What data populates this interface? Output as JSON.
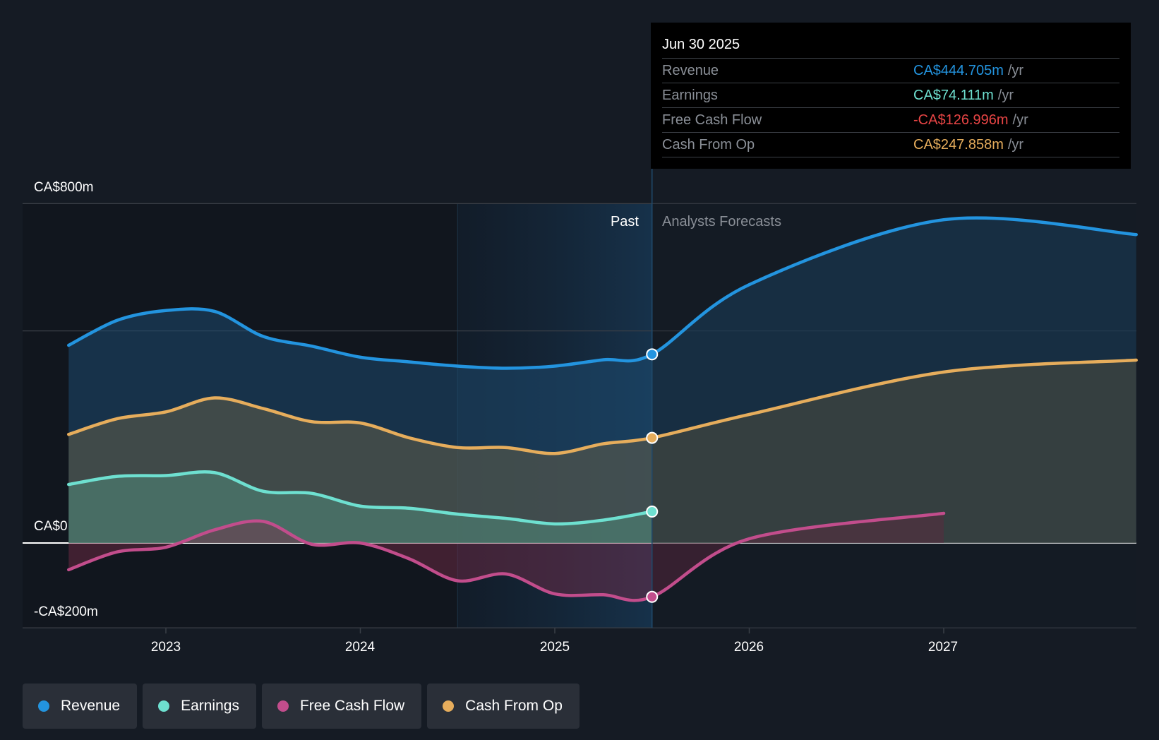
{
  "tooltip": {
    "date": "Jun 30 2025",
    "rows": [
      {
        "label": "Revenue",
        "value": "CA$444.705m",
        "unit": "/yr",
        "color": "#2394df"
      },
      {
        "label": "Earnings",
        "value": "CA$74.111m",
        "unit": "/yr",
        "color": "#6ee0d0"
      },
      {
        "label": "Free Cash Flow",
        "value": "-CA$126.996m",
        "unit": "/yr",
        "color": "#e84545"
      },
      {
        "label": "Cash From Op",
        "value": "CA$247.858m",
        "unit": "/yr",
        "color": "#e6ad5c"
      }
    ]
  },
  "legend": [
    {
      "label": "Revenue",
      "color": "#2394df"
    },
    {
      "label": "Earnings",
      "color": "#6ee0d0"
    },
    {
      "label": "Free Cash Flow",
      "color": "#c24d8c"
    },
    {
      "label": "Cash From Op",
      "color": "#e6ad5c"
    }
  ],
  "chart_data": {
    "type": "area",
    "title": "",
    "xlabel": "",
    "ylabel": "",
    "currency_unit": "CA$ millions",
    "ylim": [
      -200,
      800
    ],
    "xlim": [
      2022.3,
      2027.95
    ],
    "y_tick_labels": [
      {
        "value": 800,
        "label": "CA$800m"
      },
      {
        "value": 0,
        "label": "CA$0"
      },
      {
        "value": -200,
        "label": "-CA$200m"
      }
    ],
    "gridlines": [
      800,
      500,
      0,
      -200
    ],
    "x_ticks": [
      2023,
      2024,
      2025,
      2026,
      2027
    ],
    "x_tick_labels": [
      "2023",
      "2024",
      "2025",
      "2026",
      "2027"
    ],
    "past_label": "Past",
    "forecast_label": "Analysts Forecasts",
    "divider_x": 2025.5,
    "highlight_range": [
      2024.5,
      2025.5
    ],
    "series": [
      {
        "name": "Revenue",
        "color": "#2394df",
        "x": [
          2022.5,
          2022.75,
          2023,
          2023.25,
          2023.5,
          2023.75,
          2024,
          2024.25,
          2024.5,
          2024.75,
          2025,
          2025.25,
          2025.5,
          2026,
          2027,
          2027.99
        ],
        "values": [
          466,
          525,
          548,
          546,
          487,
          464,
          438,
          427,
          417,
          412,
          417,
          432,
          444.705,
          609,
          762,
          727
        ]
      },
      {
        "name": "Cash From Op",
        "color": "#e6ad5c",
        "x": [
          2022.5,
          2022.75,
          2023,
          2023.25,
          2023.5,
          2023.75,
          2024,
          2024.25,
          2024.5,
          2024.75,
          2025,
          2025.25,
          2025.5,
          2026,
          2027,
          2027.99
        ],
        "values": [
          256,
          293,
          309,
          342,
          317,
          286,
          283,
          248,
          225,
          225,
          211,
          234,
          247.858,
          303,
          403,
          431
        ]
      },
      {
        "name": "Earnings",
        "color": "#6ee0d0",
        "x": [
          2022.5,
          2022.75,
          2023,
          2023.25,
          2023.5,
          2023.75,
          2024,
          2024.25,
          2024.5,
          2024.75,
          2025,
          2025.25,
          2025.5
        ],
        "values": [
          138,
          157,
          159,
          166,
          122,
          117,
          87,
          82,
          68,
          58,
          45,
          54,
          74.111
        ]
      },
      {
        "name": "Free Cash Flow",
        "color": "#c24d8c",
        "x": [
          2022.5,
          2022.75,
          2023,
          2023.25,
          2023.5,
          2023.75,
          2024,
          2024.25,
          2024.5,
          2024.75,
          2025,
          2025.25,
          2025.5,
          2026,
          2027
        ],
        "values": [
          -63,
          -21,
          -10,
          31,
          51,
          -3,
          0,
          -37,
          -89,
          -73,
          -120,
          -122,
          -126.996,
          10,
          70
        ]
      }
    ]
  }
}
